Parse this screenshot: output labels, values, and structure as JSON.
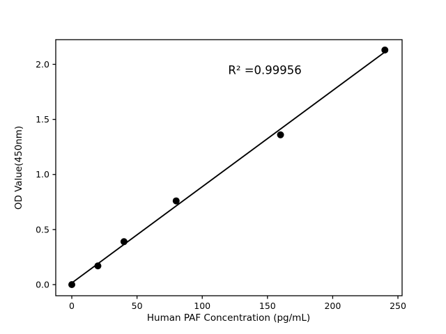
{
  "figure": {
    "background": "#ffffff",
    "foreground": "#000000"
  },
  "chart_data": {
    "type": "scatter",
    "title": "",
    "xlabel": "Human PAF Concentration (pg/mL)",
    "ylabel": "OD Value(450nm)",
    "x": [
      0,
      20,
      40,
      80,
      160,
      240
    ],
    "y": [
      0.0,
      0.17,
      0.39,
      0.76,
      1.36,
      2.13
    ],
    "fit_line": {
      "x": [
        0,
        240
      ],
      "y": [
        0.015,
        2.112
      ],
      "r_squared": 0.99956
    },
    "annotation": {
      "text": "R² =0.99956",
      "x": 148,
      "y": 1.91
    },
    "x_tick_values": [
      0,
      50,
      100,
      150,
      200,
      250
    ],
    "x_tick_labels": [
      "0",
      "50",
      "100",
      "150",
      "200",
      "250"
    ],
    "y_tick_values": [
      0.0,
      0.5,
      1.0,
      1.5,
      2.0
    ],
    "y_tick_labels": [
      "0.0",
      "0.5",
      "1.0",
      "1.5",
      "2.0"
    ],
    "xlim": [
      -12.3,
      253.2
    ],
    "ylim": [
      -0.101,
      2.224
    ],
    "grid": false,
    "legend": null,
    "marker_color": "#000000",
    "line_color": "#000000"
  }
}
